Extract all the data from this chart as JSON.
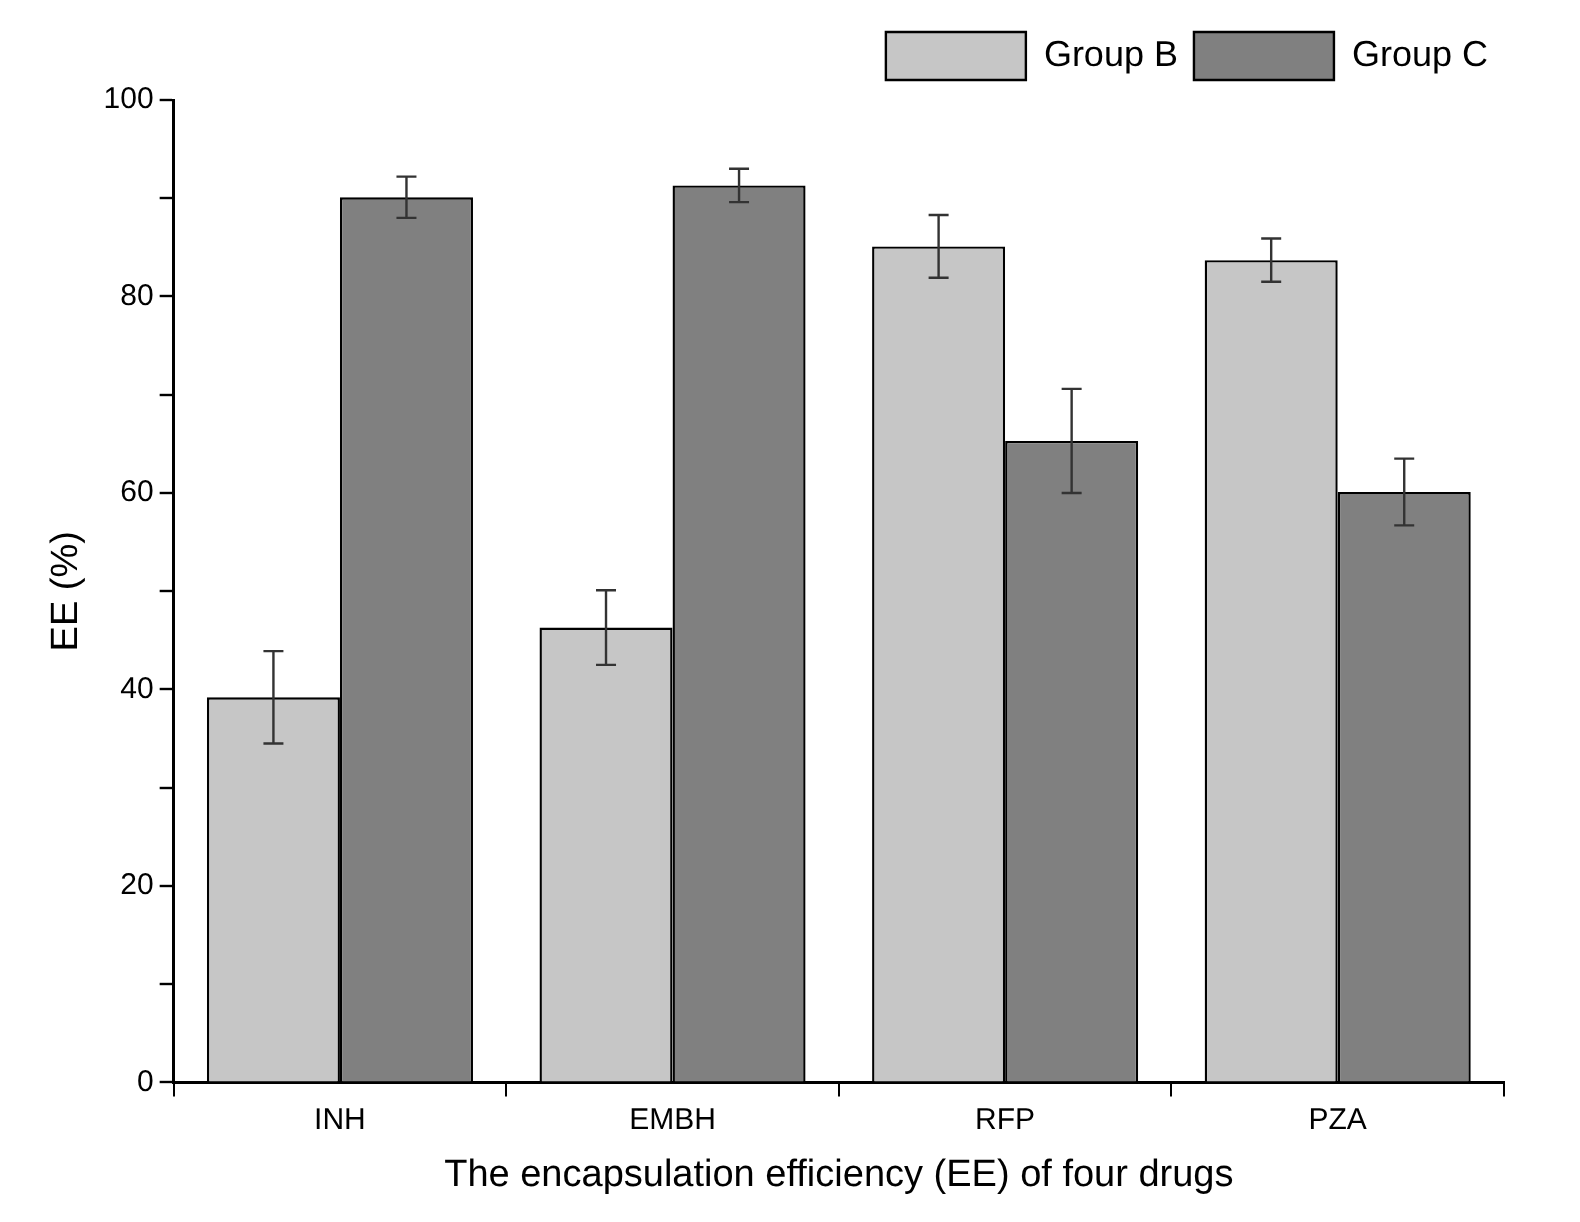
{
  "chart_data": {
    "type": "bar",
    "xlabel": "The encapsulation efficiency (EE) of four drugs",
    "ylabel": "EE (%)",
    "categories": [
      "INH",
      "EMBH",
      "RFP",
      "PZA"
    ],
    "series": [
      {
        "name": "Group B",
        "color": "#c6c6c6",
        "values": [
          39.2,
          46.3,
          85.1,
          83.7
        ],
        "errors": [
          4.7,
          3.8,
          3.2,
          2.2
        ]
      },
      {
        "name": "Group C",
        "color": "#808080",
        "values": [
          90.1,
          91.3,
          65.3,
          60.1
        ],
        "errors": [
          2.1,
          1.7,
          5.3,
          3.4
        ]
      }
    ],
    "ylim": [
      0,
      100
    ],
    "yticks": [
      0,
      {
        "value": 10,
        "label": null
      },
      20,
      {
        "value": 30,
        "label": null
      },
      40,
      {
        "value": 50,
        "label": null
      },
      60,
      {
        "value": 70,
        "label": null
      },
      80,
      {
        "value": 90,
        "label": null
      },
      100
    ],
    "grid": false,
    "legend": "top right"
  }
}
